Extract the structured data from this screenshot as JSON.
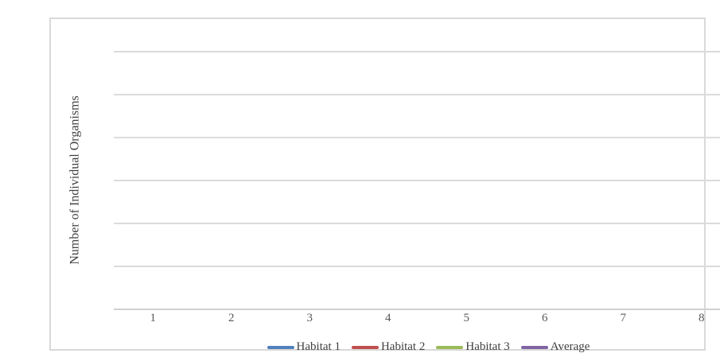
{
  "colors": {
    "frame_border": "#D9D9D9",
    "gridline": "#DBDBDB",
    "axis_line": "#D0D0D0",
    "tick_text": "#595959",
    "label_text": "#404040",
    "background": "#FFFFFF"
  },
  "chart_data": {
    "type": "line",
    "title": "",
    "xlabel": "",
    "ylabel": "Number of Individual Organisms",
    "categories": [
      "1",
      "2",
      "3",
      "4",
      "5",
      "6",
      "7",
      "8"
    ],
    "series": [
      {
        "name": "Habitat 1",
        "color": "#4F81BD",
        "values": []
      },
      {
        "name": "Habitat 2",
        "color": "#C0504D",
        "values": []
      },
      {
        "name": "Habitat 3",
        "color": "#9BBB59",
        "values": []
      },
      {
        "name": "Average",
        "color": "#8064A2",
        "values": []
      }
    ],
    "y_tick_labels": [],
    "y_gridline_count": 7,
    "grid": true,
    "legend_position": "bottom",
    "plot_empty": true
  }
}
